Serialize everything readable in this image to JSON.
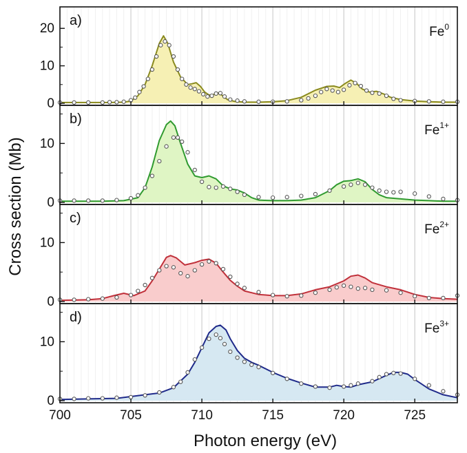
{
  "chart_data": {
    "type": "line",
    "layout": "four vertically stacked panels sharing one x axis",
    "xlabel": "Photon energy (eV)",
    "ylabel": "Cross section (Mb)",
    "xlim": [
      700,
      728
    ],
    "x_ticks": [
      700,
      705,
      710,
      715,
      720,
      725
    ],
    "vertical_gridlines": "major grey lines at every 5 eV, faint minor lines every 0.5 eV",
    "series_style": "filled theory curve (line) with open-circle experimental data points",
    "panels": [
      {
        "label": "a)",
        "ion": "Fe",
        "charge": "0",
        "line_color": "#8a8a1e",
        "fill_color": "#f6f0b4",
        "ylim": [
          0,
          25
        ],
        "y_ticks": [
          0,
          10,
          20
        ],
        "theory": {
          "x": [
            700,
            702,
            703.5,
            704.5,
            705,
            705.5,
            706,
            706.5,
            707,
            707.3,
            707.6,
            708,
            708.5,
            709,
            709.3,
            709.6,
            709.9,
            710.2,
            710.5,
            710.8,
            711.1,
            711.4,
            711.8,
            712.3,
            713,
            714,
            715,
            716,
            717,
            718,
            718.8,
            719.3,
            719.7,
            720.1,
            720.5,
            720.9,
            721.3,
            721.8,
            722.3,
            722.8,
            723.3,
            724,
            725,
            726,
            727,
            728
          ],
          "y": [
            0.2,
            0.2,
            0.2,
            0.3,
            0.6,
            2.0,
            5.0,
            10.0,
            16.0,
            18.0,
            16.0,
            11.0,
            7.0,
            5.0,
            5.2,
            5.5,
            4.5,
            3.0,
            2.2,
            2.3,
            2.8,
            2.2,
            1.0,
            0.5,
            0.3,
            0.3,
            0.4,
            0.7,
            1.6,
            3.5,
            4.5,
            4.6,
            4.2,
            5.3,
            6.2,
            5.3,
            3.8,
            3.0,
            3.2,
            2.5,
            1.6,
            1.0,
            0.6,
            0.4,
            0.3,
            0.3
          ]
        },
        "experiment": {
          "x": [
            700,
            701,
            702,
            703,
            703.5,
            704,
            704.5,
            705,
            705.3,
            705.6,
            705.9,
            706.2,
            706.5,
            706.8,
            707.1,
            707.4,
            707.7,
            708,
            708.3,
            708.6,
            708.9,
            709.2,
            709.5,
            709.8,
            710.1,
            710.4,
            710.7,
            711,
            711.3,
            711.6,
            712,
            712.5,
            713,
            714,
            715,
            716,
            717,
            717.5,
            718,
            718.4,
            718.8,
            719.2,
            719.6,
            720,
            720.4,
            720.8,
            721.2,
            721.6,
            722,
            722.5,
            723,
            723.5,
            724,
            725,
            726,
            727,
            728
          ],
          "y": [
            0.2,
            0.2,
            0.2,
            0.2,
            0.3,
            0.3,
            0.4,
            0.8,
            1.5,
            3.0,
            4.5,
            6.5,
            9.0,
            12.5,
            15.5,
            16.5,
            15.5,
            12.5,
            9.0,
            6.5,
            5.0,
            4.2,
            3.8,
            3.2,
            2.4,
            1.8,
            2.0,
            2.6,
            2.7,
            1.8,
            1.0,
            0.7,
            0.5,
            0.4,
            0.4,
            0.5,
            0.8,
            1.3,
            2.0,
            3.0,
            3.8,
            3.4,
            3.0,
            3.6,
            4.8,
            5.4,
            4.6,
            3.4,
            2.8,
            2.6,
            2.0,
            1.2,
            0.8,
            0.6,
            0.5,
            0.4,
            0.4
          ]
        }
      },
      {
        "label": "b)",
        "ion": "Fe",
        "charge": "1+",
        "line_color": "#2f9a2f",
        "fill_color": "#dff5c4",
        "ylim": [
          0,
          16
        ],
        "y_ticks": [
          0,
          10
        ],
        "theory": {
          "x": [
            700,
            703,
            704.5,
            705.5,
            706,
            706.5,
            707,
            707.5,
            707.8,
            708.1,
            708.5,
            709,
            709.5,
            710,
            710.5,
            711,
            711.5,
            712,
            712.5,
            713,
            713.5,
            714,
            715,
            716,
            717,
            718,
            719,
            719.5,
            720,
            720.5,
            721,
            721.5,
            722,
            722.5,
            723,
            724,
            725,
            726,
            727,
            728
          ],
          "y": [
            0.2,
            0.2,
            0.3,
            0.8,
            2.5,
            6.0,
            10.5,
            13.2,
            13.8,
            13.0,
            10.0,
            6.5,
            4.5,
            4.2,
            4.5,
            4.0,
            2.8,
            2.3,
            2.1,
            1.6,
            0.8,
            0.4,
            0.3,
            0.3,
            0.4,
            0.8,
            2.0,
            3.0,
            3.6,
            3.7,
            4.0,
            3.5,
            2.2,
            1.3,
            0.8,
            0.6,
            0.4,
            0.3,
            0.2,
            0.2
          ],
          "y_note": ""
        },
        "experiment": {
          "x": [
            700,
            701,
            702,
            703,
            704,
            705,
            705.5,
            706,
            706.5,
            707,
            707.5,
            708,
            708.3,
            708.6,
            709,
            709.5,
            710,
            710.5,
            711,
            711.5,
            712,
            712.5,
            713,
            714,
            715,
            716,
            717,
            718,
            719,
            720,
            720.5,
            721,
            721.5,
            722,
            722.5,
            723,
            723.5,
            724,
            725,
            726,
            727,
            728
          ],
          "y": [
            0.3,
            0.3,
            0.3,
            0.3,
            0.4,
            0.7,
            1.2,
            2.5,
            4.5,
            7.0,
            9.5,
            11.0,
            11.0,
            10.3,
            8.5,
            5.5,
            3.5,
            2.6,
            2.5,
            2.7,
            2.3,
            1.8,
            1.3,
            0.9,
            0.8,
            0.9,
            1.1,
            1.4,
            2.0,
            2.7,
            3.0,
            3.3,
            3.0,
            2.5,
            2.0,
            1.8,
            1.7,
            1.8,
            1.5,
            1.0,
            0.6,
            0.4
          ]
        }
      },
      {
        "label": "c)",
        "ion": "Fe",
        "charge": "2+",
        "line_color": "#c0303a",
        "fill_color": "#f9cccc",
        "ylim": [
          0,
          16
        ],
        "y_ticks": [
          0,
          10
        ],
        "theory": {
          "x": [
            700,
            702,
            703,
            703.8,
            704.5,
            705.2,
            706,
            706.5,
            707,
            707.5,
            707.8,
            708.2,
            708.8,
            709.5,
            710,
            710.5,
            711,
            711.5,
            712,
            712.5,
            713,
            714,
            715,
            716,
            717,
            718,
            719,
            720,
            720.5,
            721,
            721.5,
            722,
            723,
            724,
            724.5,
            725,
            726,
            727,
            728
          ],
          "y": [
            0.2,
            0.3,
            0.5,
            1.0,
            1.4,
            1.0,
            1.8,
            3.5,
            5.5,
            7.5,
            7.8,
            7.4,
            6.2,
            6.6,
            7.0,
            7.2,
            6.5,
            5.0,
            3.6,
            2.6,
            1.8,
            1.2,
            1.0,
            1.0,
            1.3,
            2.0,
            2.5,
            3.5,
            4.3,
            4.5,
            4.0,
            3.2,
            2.5,
            2.0,
            1.6,
            1.2,
            0.7,
            0.5,
            0.4
          ]
        },
        "experiment": {
          "x": [
            700,
            701,
            702,
            703,
            704,
            705,
            705.5,
            706,
            706.5,
            707,
            707.5,
            708,
            708.5,
            709,
            709.5,
            710,
            710.5,
            711,
            711.5,
            712,
            712.5,
            713,
            714,
            715,
            716,
            717,
            718,
            719,
            719.5,
            720,
            720.5,
            721,
            721.5,
            722,
            723,
            724,
            725,
            726,
            727,
            728
          ],
          "y": [
            0.3,
            0.3,
            0.4,
            0.5,
            0.7,
            1.1,
            1.8,
            2.8,
            4.0,
            5.3,
            6.0,
            5.8,
            4.8,
            4.3,
            5.3,
            6.3,
            6.8,
            6.5,
            5.5,
            4.2,
            3.0,
            2.3,
            1.6,
            1.1,
            0.9,
            1.0,
            1.5,
            2.0,
            2.4,
            2.7,
            2.5,
            2.2,
            2.3,
            2.0,
            1.9,
            1.5,
            0.9,
            0.6,
            0.6,
            1.0
          ]
        }
      },
      {
        "label": "d)",
        "ion": "Fe",
        "charge": "3+",
        "line_color": "#1f2a8a",
        "fill_color": "#d6e8f2",
        "ylim": [
          0,
          16
        ],
        "y_ticks": [
          0,
          10
        ],
        "theory": {
          "x": [
            700,
            702,
            704,
            705,
            706,
            707,
            708,
            709,
            709.5,
            710,
            710.5,
            711,
            711.3,
            711.7,
            712,
            712.5,
            713,
            713.5,
            714,
            715,
            716,
            717,
            718,
            719,
            719.5,
            720,
            720.5,
            721,
            722,
            723,
            723.5,
            724,
            724.5,
            725,
            726,
            727,
            728
          ],
          "y": [
            0.2,
            0.3,
            0.4,
            0.7,
            1.0,
            1.3,
            2.2,
            4.5,
            6.5,
            9.0,
            11.5,
            12.6,
            12.8,
            12.0,
            10.5,
            8.5,
            7.2,
            6.5,
            6.0,
            4.8,
            3.8,
            3.0,
            2.3,
            2.3,
            2.6,
            2.4,
            2.3,
            2.7,
            3.2,
            4.3,
            4.8,
            4.8,
            4.5,
            3.6,
            2.0,
            1.0,
            0.5
          ]
        },
        "experiment": {
          "x": [
            700,
            701,
            702,
            703,
            704,
            705,
            706,
            707,
            708,
            708.5,
            709,
            709.5,
            710,
            710.5,
            711,
            711.3,
            711.6,
            712,
            712.5,
            713,
            713.5,
            714,
            715,
            716,
            717,
            718,
            719,
            720,
            720.5,
            721,
            722,
            722.5,
            723,
            723.5,
            724,
            725,
            726,
            727,
            728
          ],
          "y": [
            0.3,
            0.3,
            0.4,
            0.4,
            0.5,
            0.6,
            0.9,
            1.4,
            2.3,
            3.2,
            4.8,
            7.0,
            9.0,
            10.5,
            11.2,
            10.6,
            9.6,
            8.3,
            7.3,
            6.6,
            6.1,
            5.7,
            4.7,
            3.7,
            2.9,
            2.4,
            2.2,
            2.4,
            2.6,
            2.9,
            3.3,
            4.0,
            4.5,
            4.7,
            4.6,
            3.7,
            2.6,
            1.6,
            1.0
          ]
        }
      }
    ]
  }
}
